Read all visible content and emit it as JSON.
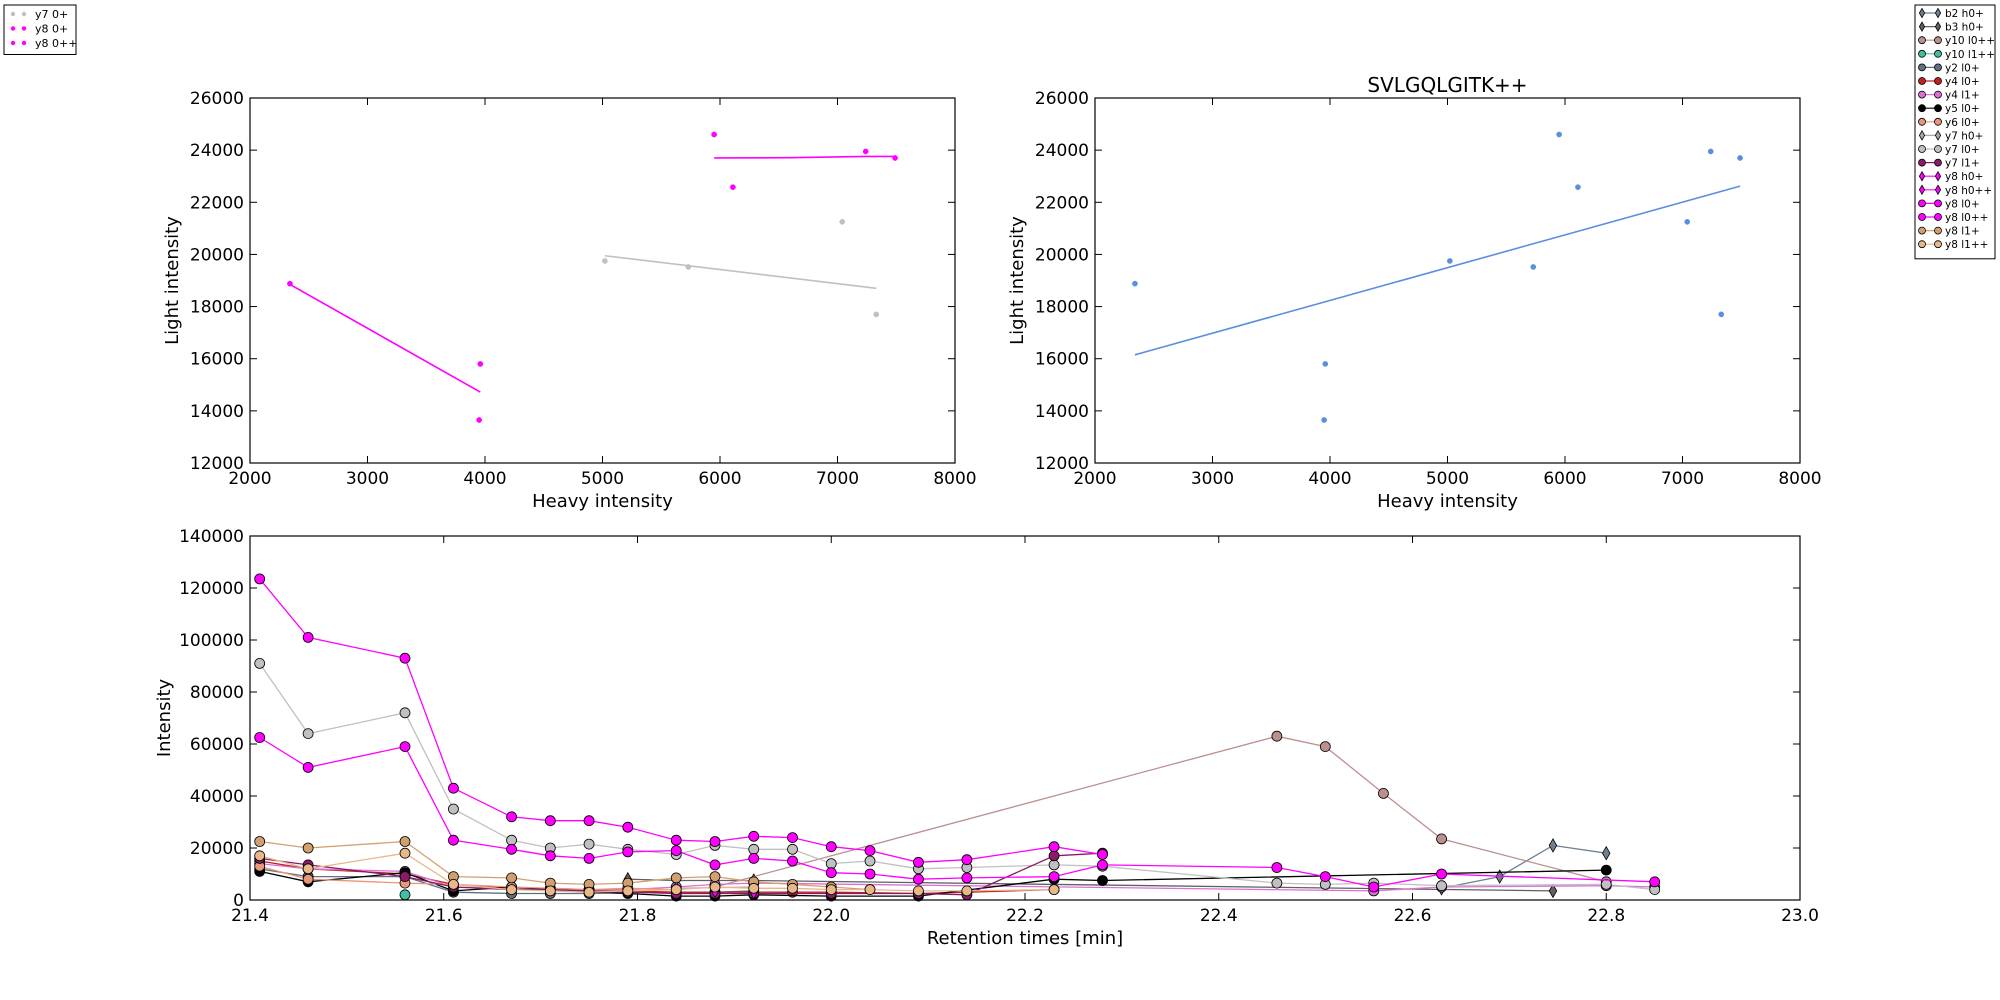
{
  "chart_data": [
    {
      "type": "scatter",
      "title": "",
      "xlabel": "Heavy intensity",
      "ylabel": "Light intensity",
      "xlim": [
        2000,
        8000
      ],
      "ylim": [
        12000,
        26000
      ],
      "xticks": [
        "2000",
        "3000",
        "4000",
        "5000",
        "6000",
        "7000",
        "8000"
      ],
      "yticks": [
        "12000",
        "14000",
        "16000",
        "18000",
        "20000",
        "22000",
        "24000",
        "26000"
      ],
      "legend_position": "outside-top-left",
      "series": [
        {
          "name": "y7 0+",
          "color": "#c0c0c0",
          "points": [
            [
              5020,
              19750
            ],
            [
              5730,
              19520
            ],
            [
              7040,
              21250
            ],
            [
              7330,
              17700
            ]
          ],
          "fit": [
            [
              5020,
              19950
            ],
            [
              7330,
              18700
            ]
          ]
        },
        {
          "name": "y8 0+",
          "color": "#ff00ff",
          "points": [
            [
              2340,
              18880
            ],
            [
              3960,
              15800
            ],
            [
              3950,
              13650
            ]
          ],
          "fit": [
            [
              2340,
              18850
            ],
            [
              3960,
              14720
            ]
          ]
        },
        {
          "name": "y8 0++",
          "color": "#ff00ff",
          "points": [
            [
              5950,
              24600
            ],
            [
              6110,
              22580
            ],
            [
              7240,
              23950
            ],
            [
              7490,
              23700
            ]
          ],
          "fit": [
            [
              5950,
              23700
            ],
            [
              6600,
              23710
            ],
            [
              7240,
              23760
            ],
            [
              7490,
              23760
            ]
          ]
        }
      ]
    },
    {
      "type": "scatter",
      "title": "SVLGQLGITK++",
      "xlabel": "Heavy intensity",
      "ylabel": "Light intensity",
      "xlim": [
        2000,
        8000
      ],
      "ylim": [
        12000,
        26000
      ],
      "xticks": [
        "2000",
        "3000",
        "4000",
        "5000",
        "6000",
        "7000",
        "8000"
      ],
      "yticks": [
        "12000",
        "14000",
        "16000",
        "18000",
        "20000",
        "22000",
        "24000",
        "26000"
      ],
      "series": [
        {
          "color": "#5a8fe0",
          "points": [
            [
              2340,
              18880
            ],
            [
              3960,
              15800
            ],
            [
              3950,
              13650
            ],
            [
              5020,
              19750
            ],
            [
              5730,
              19520
            ],
            [
              5950,
              24600
            ],
            [
              6110,
              22580
            ],
            [
              7040,
              21250
            ],
            [
              7240,
              23950
            ],
            [
              7330,
              17700
            ],
            [
              7490,
              23700
            ]
          ],
          "fit": [
            [
              2340,
              16150
            ],
            [
              7490,
              22620
            ]
          ]
        }
      ]
    },
    {
      "type": "line",
      "title": "",
      "xlabel": "Retention times [min]",
      "ylabel": "Intensity",
      "xlim": [
        21.4,
        23.0
      ],
      "ylim": [
        0,
        140000
      ],
      "xticks": [
        "21.4",
        "21.6",
        "21.8",
        "22.0",
        "22.2",
        "22.4",
        "22.6",
        "22.8",
        "23.0"
      ],
      "yticks": [
        "0",
        "20000",
        "40000",
        "60000",
        "80000",
        "100000",
        "120000",
        "140000"
      ],
      "legend_position": "outside-top-right",
      "series": [
        {
          "name": "b2 h0+",
          "color": "#708090",
          "marker": "diamond",
          "x": [
            22.63,
            22.69,
            22.745,
            22.8
          ],
          "y": [
            4500,
            9000,
            21000,
            18000
          ]
        },
        {
          "name": "b3 h0+",
          "color": "#606060",
          "marker": "diamond",
          "x": [
            21.79,
            21.84,
            21.92,
            22.745
          ],
          "y": [
            8000,
            7500,
            7500,
            3500
          ]
        },
        {
          "name": "y10 l0++",
          "color": "#bc8f8f",
          "marker": "circle",
          "x": [
            21.88,
            22.46,
            22.51,
            22.57,
            22.63,
            22.8
          ],
          "y": [
            5000,
            63000,
            59000,
            41000,
            23500,
            7000
          ]
        },
        {
          "name": "y10 l1++",
          "color": "#40c0a0",
          "marker": "circle",
          "x": [
            21.56
          ],
          "y": [
            2000
          ]
        },
        {
          "name": "y2 l0+",
          "color": "#607080",
          "marker": "circle",
          "x": [
            21.41,
            21.46,
            21.56,
            21.61,
            21.67,
            21.71,
            21.75,
            21.79,
            21.84,
            21.88,
            21.92
          ],
          "y": [
            12000,
            9000,
            9000,
            3000,
            2500,
            2500,
            2500,
            3000,
            3000,
            3000,
            3500
          ]
        },
        {
          "name": "y4 l0+",
          "color": "#c02020",
          "marker": "circle",
          "x": [
            21.41,
            21.46,
            21.56,
            21.61,
            21.67,
            21.71,
            21.75,
            21.79,
            21.84,
            21.88,
            21.92,
            21.96,
            22.0,
            22.09,
            22.14,
            22.23
          ],
          "y": [
            15000,
            12000,
            10000,
            6000,
            4500,
            4000,
            3500,
            3500,
            3000,
            3000,
            3000,
            3000,
            3000,
            2500,
            3000,
            4000
          ]
        },
        {
          "name": "y4 l1+",
          "color": "#da70d6",
          "marker": "circle",
          "x": [
            21.41,
            21.46,
            21.56,
            21.61,
            21.67,
            21.71,
            21.75,
            21.79,
            21.84,
            21.88,
            21.92,
            22.56,
            22.63,
            22.8,
            22.85
          ],
          "y": [
            14000,
            12000,
            11000,
            5000,
            4500,
            4500,
            4000,
            4000,
            5000,
            6000,
            6500,
            3500,
            5000,
            5500,
            5000
          ]
        },
        {
          "name": "y5 l0+",
          "color": "#000000",
          "marker": "circle",
          "x": [
            21.41,
            21.46,
            21.56,
            21.61,
            21.67,
            21.71,
            21.75,
            21.79,
            21.84,
            21.88,
            21.92,
            22.0,
            22.09,
            22.23,
            22.28,
            22.8
          ],
          "y": [
            11000,
            7000,
            10500,
            3500,
            5000,
            4000,
            3000,
            2500,
            1500,
            1500,
            2000,
            1500,
            1500,
            8000,
            7500,
            11500
          ]
        },
        {
          "name": "y6 l0+",
          "color": "#e9967a",
          "marker": "circle",
          "x": [
            21.41,
            21.46,
            21.56,
            21.61,
            21.67,
            21.71,
            21.75,
            21.79,
            21.84
          ],
          "y": [
            13000,
            8000,
            6500,
            6000,
            5000,
            4500,
            4000,
            4500,
            4000
          ]
        },
        {
          "name": "y7 h0+",
          "color": "#a8a8a8",
          "marker": "diamond",
          "x": [
            21.84,
            21.92
          ],
          "y": [
            4500,
            5000
          ]
        },
        {
          "name": "y7 l0+",
          "color": "#c0c0c0",
          "marker": "circle",
          "x": [
            21.41,
            21.46,
            21.56,
            21.61,
            21.67,
            21.71,
            21.75,
            21.79,
            21.84,
            21.88,
            21.92,
            21.96,
            22.0,
            22.04,
            22.09,
            22.14,
            22.23,
            22.28,
            22.46,
            22.51,
            22.56,
            22.63,
            22.8,
            22.85
          ],
          "y": [
            91000,
            64000,
            72000,
            35000,
            23000,
            20000,
            21500,
            19500,
            17500,
            21000,
            19500,
            19500,
            14000,
            15000,
            12000,
            12500,
            13500,
            13000,
            6500,
            6000,
            6500,
            5500,
            6000,
            4000
          ]
        },
        {
          "name": "y7 l1+",
          "color": "#8b1a6b",
          "marker": "circle",
          "x": [
            21.41,
            21.46,
            21.56,
            21.61,
            21.67,
            21.71,
            21.75,
            21.79,
            21.84,
            21.88,
            21.92,
            22.0,
            22.09,
            22.14,
            22.23,
            22.28
          ],
          "y": [
            16000,
            13500,
            9000,
            5000,
            4000,
            4000,
            3500,
            3000,
            2500,
            2500,
            2500,
            2500,
            2500,
            2000,
            17000,
            18000
          ]
        },
        {
          "name": "y8 h0+",
          "color": "#ff00ff",
          "marker": "diamond",
          "x": [
            21.88
          ],
          "y": [
            3500
          ]
        },
        {
          "name": "y8 h0++",
          "color": "#ff00ff",
          "marker": "diamond",
          "x": [
            21.92
          ],
          "y": [
            3000
          ]
        },
        {
          "name": "y8 l0+",
          "color": "#ff00ff",
          "marker": "circle",
          "x": [
            21.41,
            21.46,
            21.56,
            21.61,
            21.67,
            21.71,
            21.75,
            21.79,
            21.84,
            21.88,
            21.92,
            21.96,
            22.0,
            22.04,
            22.09,
            22.14,
            22.23,
            22.28,
            22.46,
            22.51,
            22.56,
            22.63,
            22.85
          ],
          "y": [
            62500,
            51000,
            59000,
            23000,
            19500,
            17000,
            16000,
            18500,
            19000,
            13500,
            16000,
            15000,
            10500,
            10000,
            8000,
            8500,
            9000,
            13500,
            12500,
            9000,
            5000,
            10000,
            7000
          ]
        },
        {
          "name": "y8 l0++",
          "color": "#ff00ff",
          "marker": "circle",
          "x": [
            21.41,
            21.46,
            21.56,
            21.61,
            21.67,
            21.71,
            21.75,
            21.79,
            21.84,
            21.88,
            21.92,
            21.96,
            22.0,
            22.04,
            22.09,
            22.14,
            22.23,
            22.28
          ],
          "y": [
            123500,
            101000,
            93000,
            43000,
            32000,
            30500,
            30500,
            28000,
            23000,
            22500,
            24500,
            24000,
            20500,
            19000,
            14500,
            15500,
            20500,
            17500
          ]
        },
        {
          "name": "y8 l1+",
          "color": "#d2a070",
          "marker": "circle",
          "x": [
            21.41,
            21.46,
            21.56,
            21.61,
            21.67,
            21.71,
            21.75,
            21.79,
            21.84,
            21.88,
            21.92,
            21.96,
            22.0,
            22.04
          ],
          "y": [
            22500,
            20000,
            22500,
            9000,
            8500,
            6500,
            6000,
            6500,
            8500,
            9000,
            7000,
            6000,
            5000,
            4000
          ]
        },
        {
          "name": "y8 l1++",
          "color": "#e8b888",
          "marker": "circle",
          "x": [
            21.41,
            21.46,
            21.56,
            21.61,
            21.67,
            21.71,
            21.75,
            21.79,
            21.84,
            21.88,
            21.92,
            21.96,
            22.0,
            22.04,
            22.09,
            22.14,
            22.23
          ],
          "y": [
            17000,
            12000,
            18000,
            6000,
            4000,
            3500,
            3000,
            3500,
            4000,
            5000,
            4500,
            4500,
            4000,
            4000,
            3500,
            3500,
            4000
          ]
        }
      ]
    }
  ]
}
